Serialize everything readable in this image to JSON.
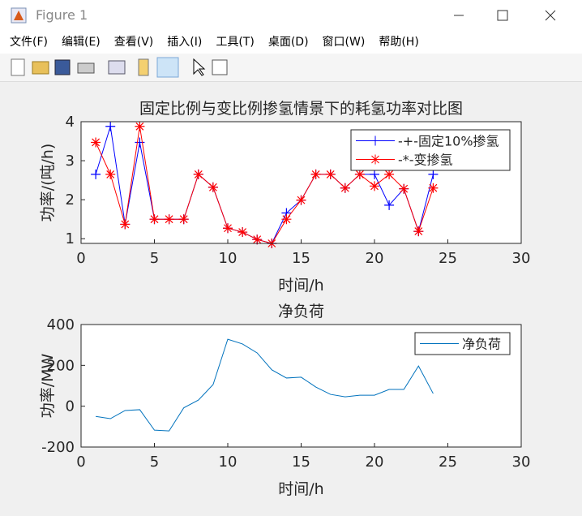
{
  "window": {
    "title": "Figure 1",
    "menu": [
      "文件(F)",
      "编辑(E)",
      "查看(V)",
      "插入(I)",
      "工具(T)",
      "桌面(D)",
      "窗口(W)",
      "帮助(H)"
    ]
  },
  "chart_data": [
    {
      "type": "line",
      "title": "固定比例与变比例掺氢情景下的耗氢功率对比图",
      "xlabel": "时间/h",
      "ylabel": "功率/(吨/h)",
      "x": [
        1,
        2,
        3,
        4,
        5,
        6,
        7,
        8,
        9,
        10,
        11,
        12,
        13,
        14,
        15,
        16,
        17,
        18,
        19,
        20,
        21,
        22,
        23,
        24
      ],
      "series": [
        {
          "name": "-+-固定10%掺氢",
          "color": "#0000ff",
          "marker": "+",
          "values": [
            2.65,
            3.88,
            1.37,
            3.47,
            1.5,
            1.5,
            1.5,
            2.65,
            2.32,
            1.27,
            1.17,
            0.98,
            0.88,
            1.66,
            1.99,
            2.65,
            2.65,
            2.3,
            2.65,
            2.65,
            1.86,
            2.28,
            1.19,
            2.65
          ]
        },
        {
          "name": "-*-变掺氢",
          "color": "#ff0000",
          "marker": "*",
          "values": [
            3.47,
            2.65,
            1.37,
            3.88,
            1.5,
            1.5,
            1.5,
            2.65,
            2.32,
            1.27,
            1.17,
            0.98,
            0.88,
            1.5,
            1.99,
            2.65,
            2.65,
            2.3,
            2.65,
            2.35,
            2.65,
            2.28,
            1.19,
            2.3
          ]
        }
      ],
      "xlim": [
        0,
        30
      ],
      "xticks": [
        0,
        5,
        10,
        15,
        20,
        25,
        30
      ],
      "ylim": [
        0.88,
        4
      ],
      "yticks": [
        1,
        2,
        3,
        4
      ],
      "legend": "upper right"
    },
    {
      "type": "line",
      "title": "净负荷",
      "xlabel": "时间/h",
      "ylabel": "功率/MW",
      "x": [
        1,
        2,
        3,
        4,
        5,
        6,
        7,
        8,
        9,
        10,
        11,
        12,
        13,
        14,
        15,
        16,
        17,
        18,
        19,
        20,
        21,
        22,
        23,
        24
      ],
      "series": [
        {
          "name": "净负荷",
          "color": "#0072bd",
          "marker": "none",
          "values": [
            -50,
            -61,
            -21,
            -17,
            -117,
            -121,
            -8,
            30,
            106,
            328,
            305,
            261,
            178,
            138,
            142,
            94,
            58,
            46,
            54,
            54,
            82,
            82,
            197,
            62
          ]
        }
      ],
      "xlim": [
        0,
        30
      ],
      "xticks": [
        0,
        5,
        10,
        15,
        20,
        25,
        30
      ],
      "ylim": [
        -200,
        400
      ],
      "yticks": [
        -200,
        0,
        200,
        400
      ],
      "legend": "upper right"
    }
  ]
}
